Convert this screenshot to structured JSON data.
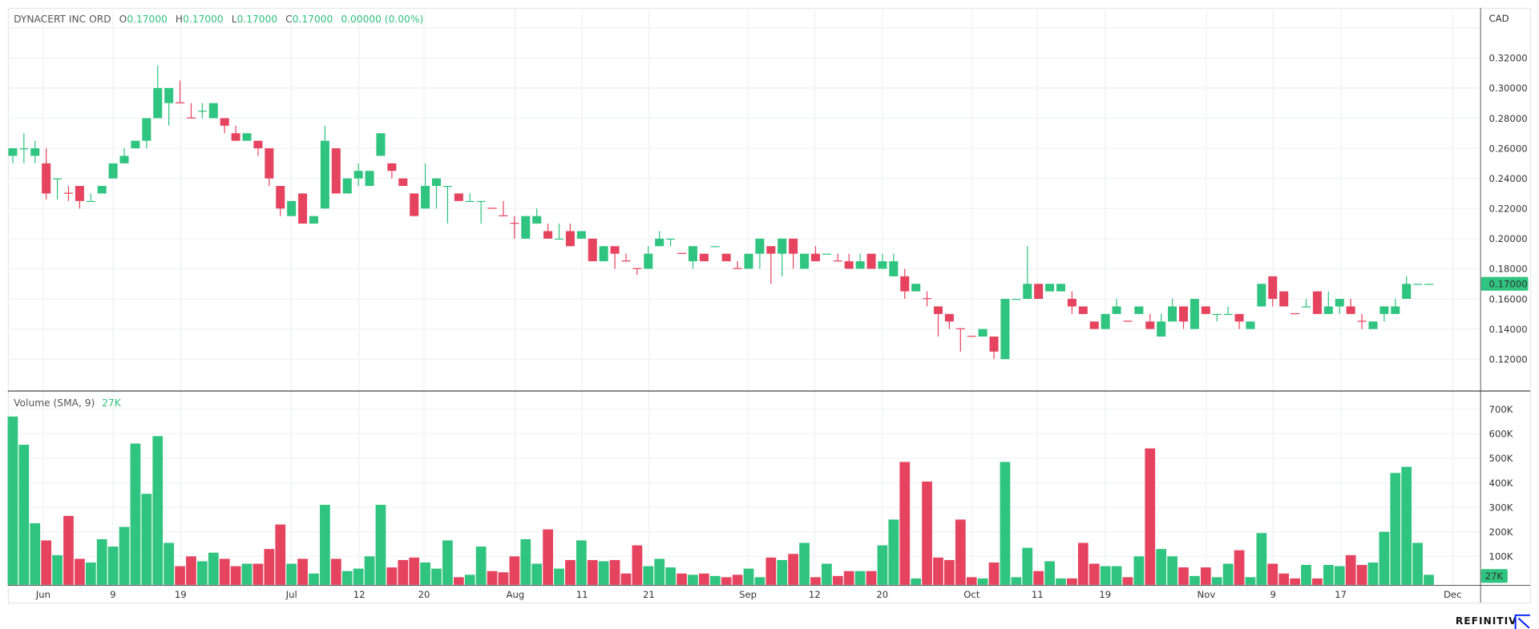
{
  "header": {
    "symbol": "DYNACERT INC ORD",
    "open_label": "O",
    "open": "0.17000",
    "high_label": "H",
    "high": "0.17000",
    "low_label": "L",
    "low": "0.17000",
    "close_label": "C",
    "close": "0.17000",
    "change": "0.00000 (0.00%)"
  },
  "currency": "CAD",
  "volume_legend": {
    "label": "Volume (SMA, 9)",
    "value": "27K"
  },
  "last_price_label": "0.17000",
  "last_volume_label": "27K",
  "branding": {
    "name": "REFINITIV",
    "icon": "refinitiv-arrow-logo"
  },
  "colors": {
    "up": "#2fc47f",
    "down": "#e6435f",
    "grid": "#f0f1f3",
    "text": "#555555",
    "brand": "#001eff"
  },
  "chart_data": {
    "type": "candlestick",
    "title": "DYNACERT INC ORD",
    "price_axis": {
      "unit": "CAD",
      "ticks": [
        "0.32000",
        "0.30000",
        "0.28000",
        "0.26000",
        "0.24000",
        "0.22000",
        "0.20000",
        "0.18000",
        "0.16000",
        "0.14000",
        "0.12000"
      ]
    },
    "volume_axis": {
      "ticks": [
        {
          "label": "700K",
          "value": 700
        },
        {
          "label": "600K",
          "value": 600
        },
        {
          "label": "500K",
          "value": 500
        },
        {
          "label": "400K",
          "value": 400
        },
        {
          "label": "300K",
          "value": 300
        },
        {
          "label": "200K",
          "value": 200
        },
        {
          "label": "100K",
          "value": 100
        }
      ]
    },
    "x_ticks": [
      "Jun",
      "9",
      "19",
      "Jul",
      "12",
      "20",
      "Aug",
      "11",
      "21",
      "Sep",
      "12",
      "20",
      "Oct",
      "11",
      "19",
      "Nov",
      "9",
      "17",
      "Dec"
    ],
    "grid": true,
    "candle_fields": [
      "open",
      "high",
      "low",
      "close",
      "volume_K"
    ],
    "candles": [
      [
        0.255,
        0.26,
        0.25,
        0.26,
        670
      ],
      [
        0.26,
        0.27,
        0.25,
        0.26,
        555
      ],
      [
        0.255,
        0.265,
        0.25,
        0.26,
        235
      ],
      [
        0.25,
        0.26,
        0.226,
        0.23,
        165
      ],
      [
        0.24,
        0.24,
        0.226,
        0.24,
        105
      ],
      [
        0.2305,
        0.235,
        0.225,
        0.23,
        265
      ],
      [
        0.235,
        0.235,
        0.22,
        0.225,
        90
      ],
      [
        0.225,
        0.23,
        0.225,
        0.225,
        75
      ],
      [
        0.23,
        0.235,
        0.23,
        0.235,
        170
      ],
      [
        0.24,
        0.25,
        0.24,
        0.25,
        140
      ],
      [
        0.25,
        0.26,
        0.25,
        0.255,
        220
      ],
      [
        0.26,
        0.265,
        0.26,
        0.265,
        560
      ],
      [
        0.265,
        0.28,
        0.26,
        0.28,
        355
      ],
      [
        0.28,
        0.315,
        0.28,
        0.3,
        590
      ],
      [
        0.29,
        0.3,
        0.275,
        0.3,
        155
      ],
      [
        0.2905,
        0.305,
        0.29,
        0.29,
        60
      ],
      [
        0.2805,
        0.29,
        0.28,
        0.28,
        100
      ],
      [
        0.285,
        0.29,
        0.28,
        0.285,
        80
      ],
      [
        0.28,
        0.29,
        0.28,
        0.29,
        115
      ],
      [
        0.28,
        0.28,
        0.27,
        0.275,
        90
      ],
      [
        0.27,
        0.275,
        0.265,
        0.265,
        60
      ],
      [
        0.265,
        0.27,
        0.265,
        0.27,
        70
      ],
      [
        0.265,
        0.265,
        0.255,
        0.26,
        70
      ],
      [
        0.26,
        0.26,
        0.235,
        0.24,
        130
      ],
      [
        0.235,
        0.235,
        0.215,
        0.22,
        230
      ],
      [
        0.215,
        0.225,
        0.215,
        0.225,
        70
      ],
      [
        0.23,
        0.23,
        0.21,
        0.21,
        90
      ],
      [
        0.21,
        0.215,
        0.21,
        0.215,
        30
      ],
      [
        0.22,
        0.275,
        0.22,
        0.265,
        310
      ],
      [
        0.26,
        0.26,
        0.23,
        0.23,
        90
      ],
      [
        0.23,
        0.24,
        0.23,
        0.24,
        40
      ],
      [
        0.24,
        0.25,
        0.235,
        0.245,
        50
      ],
      [
        0.235,
        0.245,
        0.235,
        0.245,
        100
      ],
      [
        0.255,
        0.27,
        0.255,
        0.27,
        310
      ],
      [
        0.25,
        0.25,
        0.24,
        0.245,
        55
      ],
      [
        0.24,
        0.24,
        0.235,
        0.235,
        85
      ],
      [
        0.23,
        0.23,
        0.215,
        0.215,
        95
      ],
      [
        0.22,
        0.25,
        0.22,
        0.235,
        75
      ],
      [
        0.235,
        0.24,
        0.22,
        0.24,
        50
      ],
      [
        0.235,
        0.235,
        0.21,
        0.235,
        165
      ],
      [
        0.23,
        0.23,
        0.225,
        0.225,
        15
      ],
      [
        0.225,
        0.23,
        0.225,
        0.225,
        25
      ],
      [
        0.225,
        0.225,
        0.21,
        0.225,
        140
      ],
      [
        0.2205,
        0.2205,
        0.22,
        0.22,
        40
      ],
      [
        0.2155,
        0.225,
        0.215,
        0.215,
        35
      ],
      [
        0.2105,
        0.215,
        0.2,
        0.21,
        100
      ],
      [
        0.2,
        0.215,
        0.2,
        0.215,
        170
      ],
      [
        0.21,
        0.22,
        0.21,
        0.215,
        70
      ],
      [
        0.205,
        0.21,
        0.2,
        0.2,
        210
      ],
      [
        0.2,
        0.21,
        0.2,
        0.2,
        50
      ],
      [
        0.205,
        0.21,
        0.195,
        0.195,
        85
      ],
      [
        0.2,
        0.205,
        0.2,
        0.205,
        165
      ],
      [
        0.2,
        0.2,
        0.185,
        0.185,
        85
      ],
      [
        0.185,
        0.195,
        0.185,
        0.195,
        80
      ],
      [
        0.195,
        0.195,
        0.18,
        0.19,
        85
      ],
      [
        0.1855,
        0.19,
        0.185,
        0.185,
        30
      ],
      [
        0.1805,
        0.1805,
        0.176,
        0.18,
        145
      ],
      [
        0.18,
        0.195,
        0.18,
        0.19,
        60
      ],
      [
        0.195,
        0.205,
        0.195,
        0.2,
        90
      ],
      [
        0.2,
        0.2,
        0.195,
        0.2,
        55
      ],
      [
        0.1905,
        0.1905,
        0.19,
        0.19,
        30
      ],
      [
        0.185,
        0.195,
        0.18,
        0.195,
        25
      ],
      [
        0.19,
        0.19,
        0.185,
        0.185,
        30
      ],
      [
        0.195,
        0.195,
        0.195,
        0.195,
        20
      ],
      [
        0.19,
        0.19,
        0.185,
        0.185,
        15
      ],
      [
        0.1805,
        0.185,
        0.18,
        0.18,
        25
      ],
      [
        0.18,
        0.19,
        0.18,
        0.19,
        50
      ],
      [
        0.19,
        0.2,
        0.18,
        0.2,
        15
      ],
      [
        0.195,
        0.195,
        0.17,
        0.19,
        95
      ],
      [
        0.19,
        0.2,
        0.175,
        0.2,
        85
      ],
      [
        0.2,
        0.2,
        0.18,
        0.19,
        110
      ],
      [
        0.18,
        0.19,
        0.18,
        0.19,
        155
      ],
      [
        0.19,
        0.195,
        0.185,
        0.185,
        15
      ],
      [
        0.19,
        0.19,
        0.19,
        0.19,
        70
      ],
      [
        0.1855,
        0.19,
        0.185,
        0.185,
        20
      ],
      [
        0.185,
        0.19,
        0.18,
        0.18,
        40
      ],
      [
        0.18,
        0.19,
        0.18,
        0.185,
        40
      ],
      [
        0.19,
        0.19,
        0.18,
        0.18,
        40
      ],
      [
        0.18,
        0.19,
        0.18,
        0.185,
        145
      ],
      [
        0.175,
        0.19,
        0.175,
        0.185,
        250
      ],
      [
        0.175,
        0.18,
        0.16,
        0.165,
        485
      ],
      [
        0.165,
        0.17,
        0.165,
        0.17,
        10
      ],
      [
        0.1605,
        0.165,
        0.155,
        0.16,
        405
      ],
      [
        0.155,
        0.155,
        0.135,
        0.15,
        95
      ],
      [
        0.15,
        0.15,
        0.14,
        0.145,
        85
      ],
      [
        0.1405,
        0.1405,
        0.125,
        0.14,
        250
      ],
      [
        0.1355,
        0.1355,
        0.135,
        0.135,
        15
      ],
      [
        0.135,
        0.14,
        0.135,
        0.14,
        10
      ],
      [
        0.135,
        0.135,
        0.12,
        0.125,
        75
      ],
      [
        0.12,
        0.16,
        0.12,
        0.16,
        485
      ],
      [
        0.16,
        0.16,
        0.16,
        0.16,
        15
      ],
      [
        0.16,
        0.195,
        0.16,
        0.17,
        135
      ],
      [
        0.17,
        0.17,
        0.16,
        0.16,
        40
      ],
      [
        0.165,
        0.17,
        0.165,
        0.17,
        80
      ],
      [
        0.165,
        0.17,
        0.165,
        0.17,
        10
      ],
      [
        0.16,
        0.165,
        0.15,
        0.155,
        10
      ],
      [
        0.155,
        0.155,
        0.15,
        0.15,
        155
      ],
      [
        0.145,
        0.145,
        0.14,
        0.14,
        70
      ],
      [
        0.14,
        0.15,
        0.14,
        0.15,
        60
      ],
      [
        0.15,
        0.16,
        0.15,
        0.155,
        60
      ],
      [
        0.1455,
        0.1455,
        0.145,
        0.145,
        15
      ],
      [
        0.15,
        0.155,
        0.15,
        0.155,
        100
      ],
      [
        0.145,
        0.15,
        0.14,
        0.14,
        540
      ],
      [
        0.135,
        0.15,
        0.135,
        0.145,
        130
      ],
      [
        0.145,
        0.16,
        0.145,
        0.155,
        100
      ],
      [
        0.155,
        0.155,
        0.14,
        0.145,
        55
      ],
      [
        0.14,
        0.16,
        0.14,
        0.16,
        20
      ],
      [
        0.155,
        0.155,
        0.15,
        0.15,
        55
      ],
      [
        0.15,
        0.15,
        0.145,
        0.15,
        15
      ],
      [
        0.15,
        0.155,
        0.15,
        0.15,
        70
      ],
      [
        0.15,
        0.15,
        0.14,
        0.145,
        125
      ],
      [
        0.14,
        0.145,
        0.14,
        0.145,
        15
      ],
      [
        0.155,
        0.17,
        0.155,
        0.17,
        195
      ],
      [
        0.175,
        0.175,
        0.155,
        0.16,
        70
      ],
      [
        0.165,
        0.165,
        0.155,
        0.155,
        30
      ],
      [
        0.1505,
        0.1505,
        0.15,
        0.15,
        10
      ],
      [
        0.155,
        0.16,
        0.155,
        0.155,
        65
      ],
      [
        0.165,
        0.165,
        0.15,
        0.15,
        10
      ],
      [
        0.15,
        0.165,
        0.15,
        0.155,
        65
      ],
      [
        0.155,
        0.16,
        0.15,
        0.16,
        60
      ],
      [
        0.155,
        0.16,
        0.15,
        0.15,
        105
      ],
      [
        0.1455,
        0.15,
        0.14,
        0.145,
        65
      ],
      [
        0.14,
        0.145,
        0.14,
        0.145,
        75
      ],
      [
        0.15,
        0.155,
        0.145,
        0.155,
        200
      ],
      [
        0.15,
        0.16,
        0.15,
        0.155,
        440
      ],
      [
        0.16,
        0.175,
        0.16,
        0.17,
        465
      ],
      [
        0.17,
        0.17,
        0.17,
        0.17,
        155
      ],
      [
        0.17,
        0.17,
        0.17,
        0.17,
        25
      ]
    ]
  }
}
